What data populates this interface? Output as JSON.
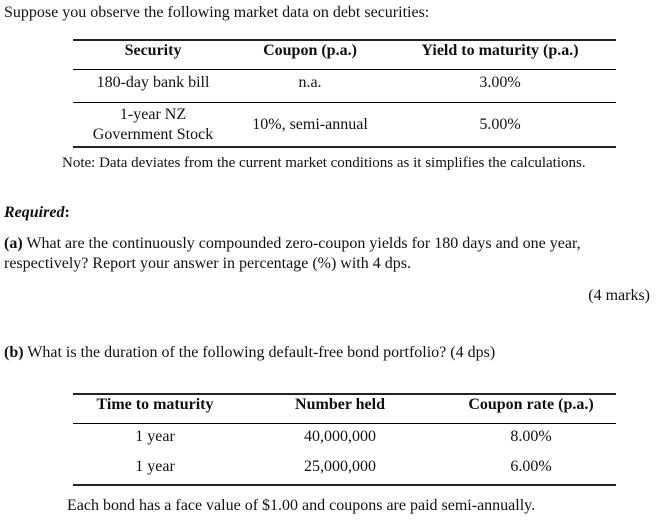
{
  "intro": "Suppose you observe the following market data on debt securities:",
  "table1": {
    "headers": [
      "Security",
      "Coupon (p.a.)",
      "Yield to maturity (p.a.)"
    ],
    "rows": [
      {
        "security": [
          "180-day bank bill"
        ],
        "coupon": "n.a.",
        "ytm": "3.00%"
      },
      {
        "security": [
          "1-year NZ",
          "Government Stock"
        ],
        "coupon": "10%, semi-annual",
        "ytm": "5.00%"
      }
    ]
  },
  "note": "Note: Data deviates from the current market conditions as it simplifies the calculations.",
  "required_label": "Required",
  "required_colon": ":",
  "part_a": {
    "label": "(a)",
    "line1": " What are the continuously compounded zero-coupon yields for 180 days and one year,",
    "line2": "respectively? Report your answer in percentage (%) with 4 dps.",
    "marks": "(4 marks)"
  },
  "part_b": {
    "label": "(b)",
    "text": " What is the duration of the following default-free bond portfolio? (4 dps)"
  },
  "table2": {
    "headers": [
      "Time to maturity",
      "Number held",
      "Coupon rate (p.a.)"
    ],
    "rows": [
      {
        "time": "1 year",
        "held": "40,000,000",
        "rate": "8.00%"
      },
      {
        "time": "1 year",
        "held": "25,000,000",
        "rate": "6.00%"
      }
    ]
  },
  "footer": "Each bond has a face value of $1.00 and coupons are paid semi-annually."
}
